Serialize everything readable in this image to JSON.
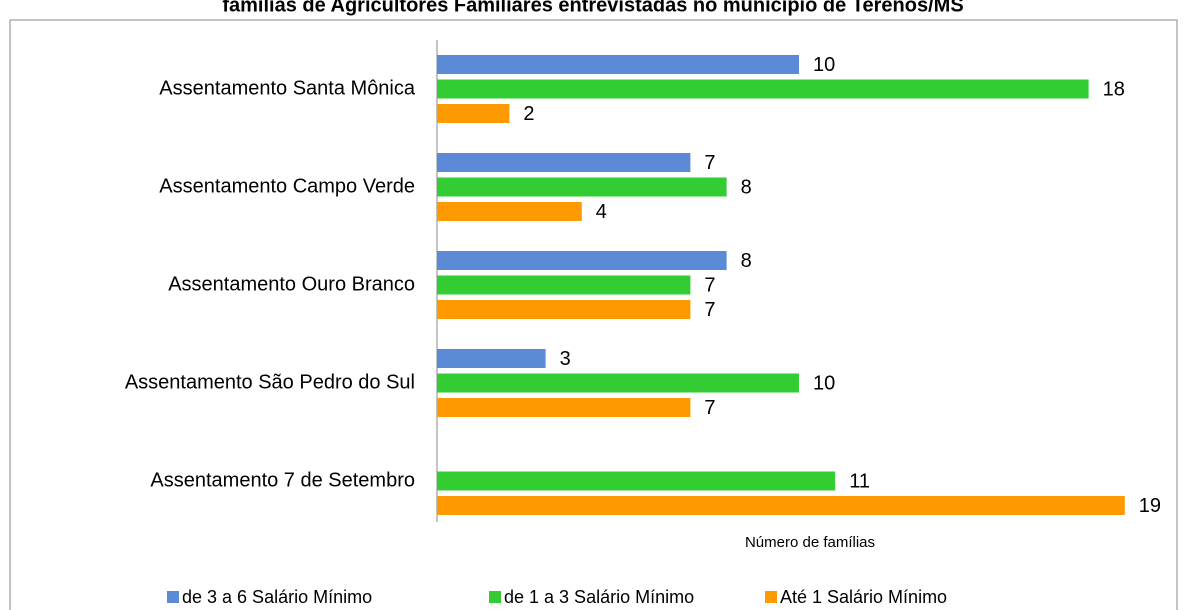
{
  "chart_data": {
    "type": "bar",
    "orientation": "horizontal",
    "title": "famílias de Agricultores Familiares entrevistadas no município de Terenos/MS",
    "x_axis_label": "Número de famílias",
    "categories": [
      "Assentamento Santa Mônica",
      "Assentamento Campo Verde",
      "Assentamento Ouro Branco",
      "Assentamento São Pedro do Sul",
      "Assentamento 7 de Setembro"
    ],
    "series": [
      {
        "name": "de 3 a 6 Salário Mínimo",
        "color": "#5b8bd6",
        "values": [
          10,
          7,
          8,
          3,
          null
        ]
      },
      {
        "name": "de 1 a 3 Salário Mínimo",
        "color": "#33cc33",
        "values": [
          18,
          8,
          7,
          10,
          11
        ]
      },
      {
        "name": "Até 1 Salário Mínimo",
        "color": "#ff9900",
        "values": [
          2,
          4,
          7,
          7,
          19
        ]
      }
    ],
    "xlim": [
      0,
      20
    ],
    "legend": "bottom"
  }
}
